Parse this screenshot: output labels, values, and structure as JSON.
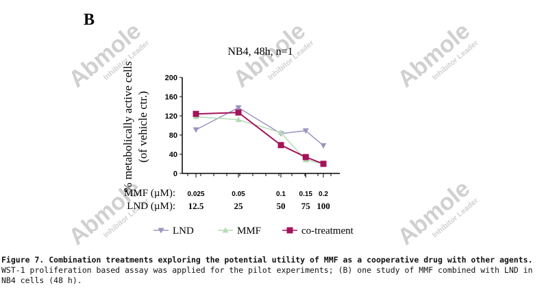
{
  "panel_label": "B",
  "watermark": "Abmole Inhibitor Leader",
  "chart_data": {
    "type": "line",
    "title": "NB4, 48h, n=1",
    "ylabel": "% metabolically active cells",
    "ylabel2": "(of vehicle ctr.)",
    "ylim": [
      0,
      200
    ],
    "yticks": [
      0,
      40,
      80,
      120,
      160,
      200
    ],
    "xscale": "log",
    "x": [
      12.5,
      25,
      50,
      75,
      100
    ],
    "xrow_labels": [
      {
        "label": "MMF (µM):",
        "ticks": [
          "0.025",
          "0.05",
          "0.1",
          "0.15",
          "0.2"
        ]
      },
      {
        "label": "LND (µM):",
        "ticks": [
          "12.5",
          "25",
          "50",
          "75",
          "100"
        ]
      }
    ],
    "series": [
      {
        "name": "LND",
        "marker": "triangle-down",
        "color": "#9a95c2",
        "values": [
          91,
          137,
          83,
          89,
          58
        ]
      },
      {
        "name": "MMF",
        "marker": "triangle-up",
        "color": "#b5dcb5",
        "values": [
          118,
          112,
          85,
          28,
          20
        ]
      },
      {
        "name": "co-treatment",
        "marker": "square",
        "color": "#a4145a",
        "values": [
          124,
          127,
          59,
          34,
          20
        ]
      }
    ],
    "legend": "bottom"
  },
  "caption": {
    "bold": "Figure 7. Combination treatments exploring the potential utility of MMF as a cooperative drug with other agents.",
    "text": " WST-1 proliferation based assay was applied for the pilot experiments;  (B) one study of MMF combined with LND in NB4 cells (48 h)."
  }
}
